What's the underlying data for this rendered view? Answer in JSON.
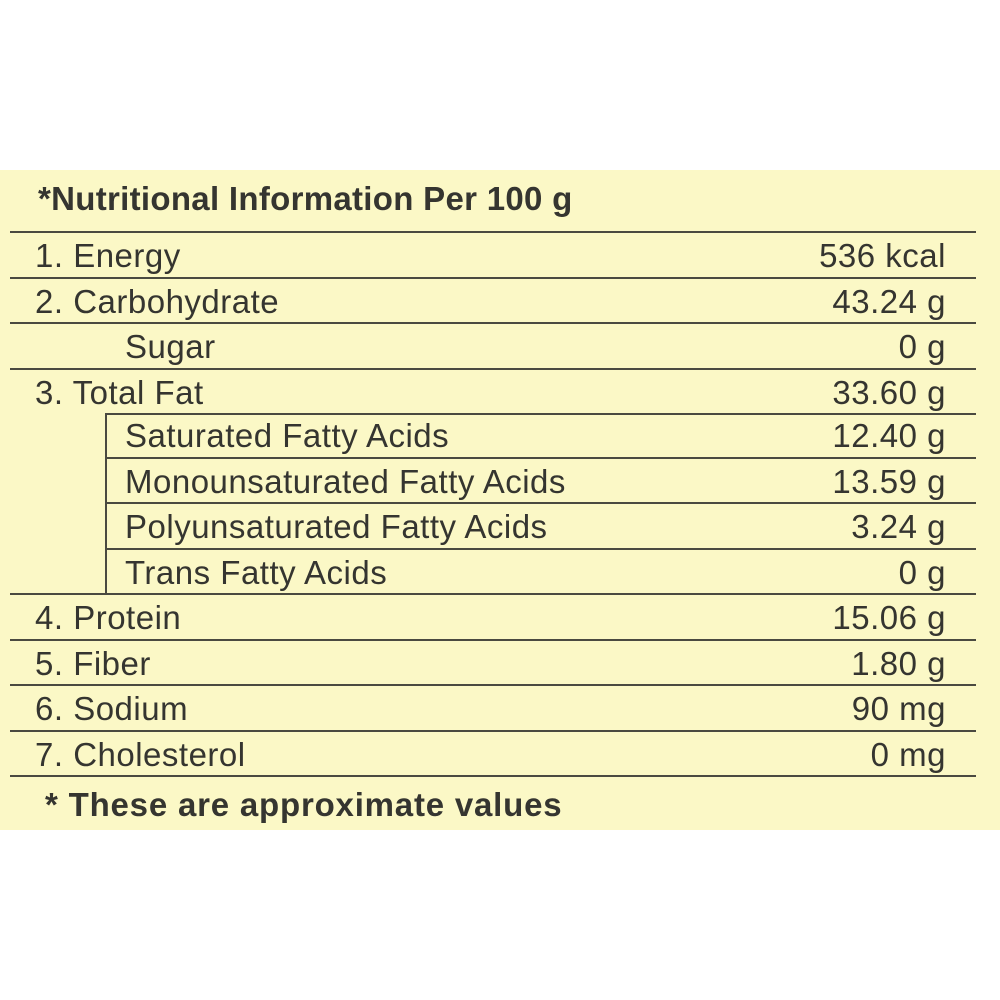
{
  "header": {
    "title": "*Nutritional Information Per 100 g"
  },
  "table": {
    "rows": [
      [
        "1. Energy",
        "536 kcal"
      ],
      [
        "2. Carbohydrate",
        "43.24 g"
      ],
      [
        "Sugar",
        "0 g"
      ],
      [
        "3. Total Fat",
        "33.60 g"
      ],
      [
        "Saturated Fatty Acids",
        "12.40 g"
      ],
      [
        "Monounsaturated Fatty Acids",
        "13.59 g"
      ],
      [
        "Polyunsaturated Fatty Acids",
        "3.24 g"
      ],
      [
        "Trans Fatty Acids",
        "0 g"
      ],
      [
        "4. Protein",
        "15.06 g"
      ],
      [
        "5. Fiber",
        "1.80 g"
      ],
      [
        "6. Sodium",
        "90 mg"
      ],
      [
        "7. Cholesterol",
        "0 mg"
      ]
    ]
  },
  "footer": {
    "note": "* These are approximate values"
  }
}
